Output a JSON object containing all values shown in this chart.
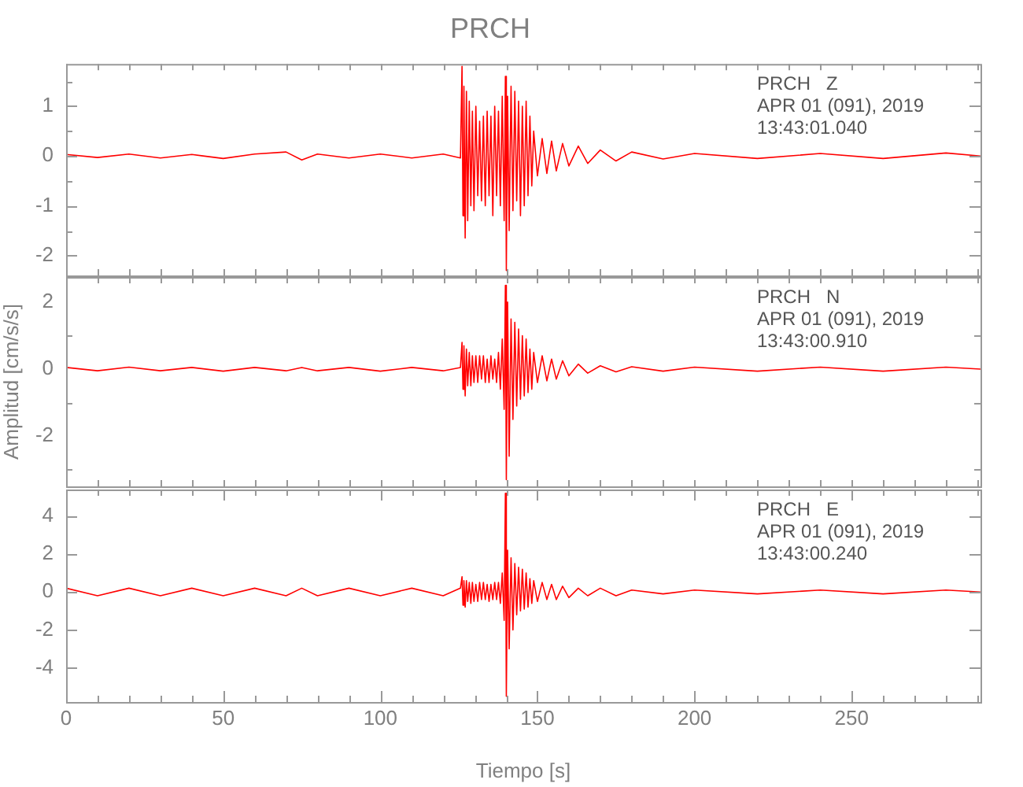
{
  "chart_data": [
    {
      "type": "line",
      "title": "PRCH",
      "tick_labels": "y",
      "annotations": [
        "PRCH   Z",
        "APR 01 (091), 2019",
        "13:43:01.040"
      ],
      "x": [
        0,
        10,
        20,
        30,
        40,
        50,
        60,
        70,
        75,
        80,
        90,
        100,
        110,
        120,
        125.5,
        126,
        126.3,
        126.6,
        127,
        127.4,
        127.8,
        128.3,
        128.8,
        129.3,
        129.8,
        130.4,
        131,
        131.6,
        132.2,
        132.8,
        133.4,
        134,
        134.6,
        135.2,
        135.8,
        136.4,
        137,
        137.6,
        138.2,
        138.8,
        139.4,
        139.8,
        140.1,
        140.5,
        141,
        141.6,
        142.2,
        142.8,
        143.4,
        144,
        144.6,
        145.2,
        145.8,
        146.4,
        147,
        147.6,
        148.2,
        148.8,
        150,
        151.5,
        153,
        154.5,
        156,
        158,
        160,
        163,
        166,
        170,
        175,
        180,
        190,
        200,
        220,
        240,
        260,
        280,
        291
      ],
      "series": [
        {
          "color": "#ff0000",
          "values": [
            0.03,
            -0.03,
            0.04,
            -0.04,
            0.03,
            -0.05,
            0.04,
            0.08,
            -0.08,
            0.04,
            -0.04,
            0.04,
            -0.04,
            0.04,
            -0.04,
            1.8,
            -1.2,
            1.4,
            -1.65,
            1.3,
            -1.3,
            1.1,
            -1.0,
            0.9,
            -1.1,
            1.0,
            -0.8,
            0.7,
            -0.9,
            0.8,
            -1.0,
            0.9,
            -0.8,
            0.8,
            -1.2,
            1.0,
            -0.8,
            0.9,
            -1.0,
            1.2,
            -1.3,
            1.6,
            -2.3,
            1.2,
            -1.5,
            1.4,
            -1.1,
            1.3,
            -0.9,
            1.1,
            -1.2,
            1.0,
            -1.0,
            1.1,
            -0.8,
            0.8,
            -0.6,
            0.5,
            -0.4,
            0.35,
            -0.35,
            0.3,
            -0.3,
            0.25,
            -0.2,
            0.2,
            -0.15,
            0.12,
            -0.1,
            0.08,
            -0.06,
            0.05,
            -0.05,
            0.05,
            -0.05,
            0.06,
            0
          ]
        }
      ],
      "xlim": [
        0,
        291
      ],
      "xticks": [
        {
          "value": 0,
          "label": null
        },
        {
          "value": 10,
          "label": null
        },
        {
          "value": 20,
          "label": null
        },
        {
          "value": 30,
          "label": null
        },
        {
          "value": 40,
          "label": null
        },
        {
          "value": 50,
          "label": null
        },
        {
          "value": 60,
          "label": null
        },
        {
          "value": 70,
          "label": null
        },
        {
          "value": 80,
          "label": null
        },
        {
          "value": 90,
          "label": null
        },
        {
          "value": 100,
          "label": null
        },
        {
          "value": 110,
          "label": null
        },
        {
          "value": 120,
          "label": null
        },
        {
          "value": 130,
          "label": null
        },
        {
          "value": 140,
          "label": null
        },
        {
          "value": 150,
          "label": null
        },
        {
          "value": 160,
          "label": null
        },
        {
          "value": 170,
          "label": null
        },
        {
          "value": 180,
          "label": null
        },
        {
          "value": 190,
          "label": null
        },
        {
          "value": 200,
          "label": null
        },
        {
          "value": 210,
          "label": null
        },
        {
          "value": 220,
          "label": null
        },
        {
          "value": 230,
          "label": null
        },
        {
          "value": 240,
          "label": null
        },
        {
          "value": 250,
          "label": null
        },
        {
          "value": 260,
          "label": null
        },
        {
          "value": 270,
          "label": null
        },
        {
          "value": 280,
          "label": null
        },
        {
          "value": 290,
          "label": null
        }
      ],
      "ylim": [
        -2.4,
        1.85
      ],
      "yticks": [
        -2,
        {
          "value": -1.5,
          "label": null
        },
        -1,
        {
          "value": -0.5,
          "label": null
        },
        0,
        {
          "value": 0.5,
          "label": null
        },
        1,
        {
          "value": 1.5,
          "label": null
        }
      ]
    },
    {
      "type": "line",
      "ylabel": "Amplitud [cm/s/s]",
      "tick_labels": "y",
      "annotations": [
        "PRCH   N",
        "APR 01 (091), 2019",
        "13:43:00.910"
      ],
      "x": [
        0,
        10,
        20,
        30,
        40,
        50,
        60,
        70,
        75,
        80,
        90,
        100,
        110,
        120,
        125.5,
        126,
        126.3,
        126.6,
        127,
        127.4,
        127.8,
        128.3,
        128.8,
        129.3,
        129.8,
        130.4,
        131,
        131.6,
        132.2,
        132.8,
        133.4,
        134,
        134.6,
        135.2,
        135.8,
        136.4,
        137,
        137.6,
        138.2,
        138.8,
        139.4,
        139.8,
        140.1,
        140.5,
        141,
        141.6,
        142.2,
        142.8,
        143.4,
        144,
        144.6,
        145.2,
        145.8,
        146.4,
        147,
        147.6,
        148.2,
        148.8,
        150,
        151.5,
        153,
        154.5,
        156,
        158,
        160,
        163,
        166,
        170,
        175,
        180,
        190,
        200,
        220,
        240,
        260,
        280,
        291
      ],
      "series": [
        {
          "color": "#ff0000",
          "values": [
            0.05,
            -0.05,
            0.06,
            -0.05,
            0.05,
            -0.06,
            0.05,
            -0.05,
            0.05,
            -0.05,
            0.05,
            -0.06,
            0.05,
            -0.05,
            0.05,
            0.8,
            -0.6,
            0.7,
            -0.8,
            0.6,
            -0.5,
            0.5,
            -0.5,
            0.4,
            -0.4,
            0.4,
            -0.4,
            0.4,
            -0.3,
            0.4,
            -0.4,
            0.3,
            -0.4,
            0.4,
            -0.3,
            0.3,
            -0.4,
            0.5,
            -0.6,
            0.9,
            -1.2,
            2.5,
            -3.3,
            2.0,
            -2.6,
            1.5,
            -1.5,
            1.4,
            -1.1,
            1.2,
            -0.9,
            1.0,
            -0.8,
            0.9,
            -0.7,
            0.6,
            -0.6,
            0.5,
            -0.4,
            0.4,
            -0.35,
            0.3,
            -0.3,
            0.25,
            -0.2,
            0.15,
            -0.12,
            0.1,
            -0.08,
            0.07,
            -0.06,
            0.06,
            -0.06,
            0.06,
            -0.06,
            0.06,
            0
          ]
        }
      ],
      "xlim": [
        0,
        291
      ],
      "xticks": [
        {
          "value": 0,
          "label": null
        },
        {
          "value": 10,
          "label": null
        },
        {
          "value": 20,
          "label": null
        },
        {
          "value": 30,
          "label": null
        },
        {
          "value": 40,
          "label": null
        },
        {
          "value": 50,
          "label": null
        },
        {
          "value": 60,
          "label": null
        },
        {
          "value": 70,
          "label": null
        },
        {
          "value": 80,
          "label": null
        },
        {
          "value": 90,
          "label": null
        },
        {
          "value": 100,
          "label": null
        },
        {
          "value": 110,
          "label": null
        },
        {
          "value": 120,
          "label": null
        },
        {
          "value": 130,
          "label": null
        },
        {
          "value": 140,
          "label": null
        },
        {
          "value": 150,
          "label": null
        },
        {
          "value": 160,
          "label": null
        },
        {
          "value": 170,
          "label": null
        },
        {
          "value": 180,
          "label": null
        },
        {
          "value": 190,
          "label": null
        },
        {
          "value": 200,
          "label": null
        },
        {
          "value": 210,
          "label": null
        },
        {
          "value": 220,
          "label": null
        },
        {
          "value": 230,
          "label": null
        },
        {
          "value": 240,
          "label": null
        },
        {
          "value": 250,
          "label": null
        },
        {
          "value": 260,
          "label": null
        },
        {
          "value": 270,
          "label": null
        },
        {
          "value": 280,
          "label": null
        },
        {
          "value": 290,
          "label": null
        }
      ],
      "ylim": [
        -3.5,
        2.75
      ],
      "yticks": [
        {
          "value": -3,
          "label": null
        },
        -2,
        {
          "value": -1,
          "label": null
        },
        0,
        {
          "value": 1,
          "label": null
        },
        2
      ]
    },
    {
      "type": "line",
      "xlabel": "Tiempo [s]",
      "annotations": [
        "PRCH   E",
        "APR 01 (091), 2019",
        "13:43:00.240"
      ],
      "x": [
        0,
        10,
        20,
        30,
        40,
        50,
        60,
        70,
        75,
        80,
        90,
        100,
        110,
        120,
        125.5,
        126,
        126.3,
        126.6,
        127,
        127.4,
        127.8,
        128.3,
        128.8,
        129.3,
        129.8,
        130.4,
        131,
        131.6,
        132.2,
        132.8,
        133.4,
        134,
        134.6,
        135.2,
        135.8,
        136.4,
        137,
        137.6,
        138.2,
        138.8,
        139.4,
        139.8,
        140.1,
        140.5,
        141,
        141.6,
        142.2,
        142.8,
        143.4,
        144,
        144.6,
        145.2,
        145.8,
        146.4,
        147,
        147.6,
        148.2,
        148.8,
        150,
        151.5,
        153,
        154.5,
        156,
        158,
        160,
        163,
        166,
        170,
        175,
        180,
        190,
        200,
        220,
        240,
        260,
        280,
        291
      ],
      "series": [
        {
          "color": "#ff0000",
          "values": [
            0.2,
            -0.2,
            0.2,
            -0.2,
            0.2,
            -0.2,
            0.2,
            -0.2,
            0.2,
            -0.2,
            0.2,
            -0.2,
            0.2,
            -0.2,
            0.2,
            0.8,
            -0.7,
            0.6,
            -0.8,
            0.6,
            -0.5,
            0.5,
            -0.6,
            0.5,
            -0.5,
            0.4,
            -0.5,
            0.5,
            -0.4,
            0.5,
            -0.4,
            0.4,
            -0.5,
            0.4,
            -0.4,
            0.5,
            -0.4,
            0.5,
            -0.6,
            1.0,
            -1.5,
            5.2,
            -5.5,
            2.2,
            -3.0,
            1.8,
            -2.0,
            1.5,
            -1.2,
            1.3,
            -1.0,
            1.2,
            -0.9,
            1.0,
            -0.8,
            0.7,
            -0.6,
            0.6,
            -0.5,
            0.5,
            -0.4,
            0.4,
            -0.4,
            0.3,
            -0.3,
            0.2,
            -0.2,
            0.2,
            -0.2,
            0.1,
            -0.1,
            0.1,
            -0.1,
            0.1,
            -0.1,
            0.1,
            0
          ]
        }
      ],
      "xlim": [
        0,
        291
      ],
      "xticks": [
        0,
        {
          "value": 10,
          "label": null
        },
        {
          "value": 20,
          "label": null
        },
        {
          "value": 30,
          "label": null
        },
        {
          "value": 40,
          "label": null
        },
        50,
        {
          "value": 60,
          "label": null
        },
        {
          "value": 70,
          "label": null
        },
        {
          "value": 80,
          "label": null
        },
        {
          "value": 90,
          "label": null
        },
        100,
        {
          "value": 110,
          "label": null
        },
        {
          "value": 120,
          "label": null
        },
        {
          "value": 130,
          "label": null
        },
        {
          "value": 140,
          "label": null
        },
        150,
        {
          "value": 160,
          "label": null
        },
        {
          "value": 170,
          "label": null
        },
        {
          "value": 180,
          "label": null
        },
        {
          "value": 190,
          "label": null
        },
        200,
        {
          "value": 210,
          "label": null
        },
        {
          "value": 220,
          "label": null
        },
        {
          "value": 230,
          "label": null
        },
        {
          "value": 240,
          "label": null
        },
        250,
        {
          "value": 260,
          "label": null
        },
        {
          "value": 270,
          "label": null
        },
        {
          "value": 280,
          "label": null
        },
        {
          "value": 290,
          "label": null
        }
      ],
      "ylim": [
        -5.8,
        5.4
      ],
      "yticks": [
        -4,
        -2,
        0,
        2,
        4
      ]
    }
  ]
}
